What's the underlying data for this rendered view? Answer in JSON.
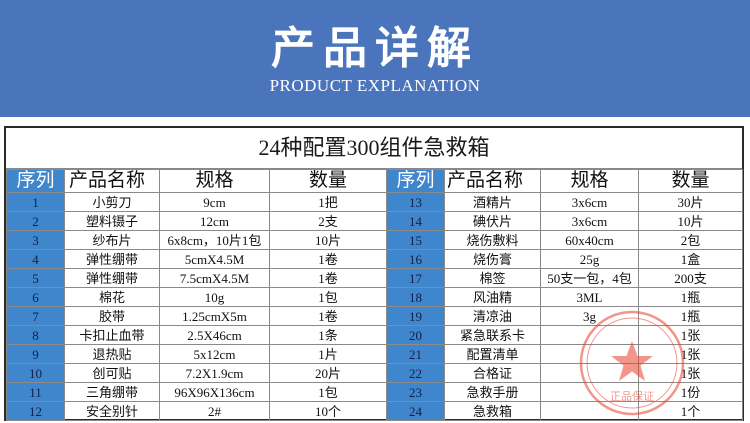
{
  "banner": {
    "title": "产品详解",
    "subtitle": "PRODUCT EXPLANATION"
  },
  "table": {
    "title": "24种配置300组件急救箱",
    "headers": {
      "index": "序列",
      "name": "产品名称",
      "spec": "规格",
      "quantity": "数量"
    },
    "left_rows": [
      {
        "index": "1",
        "name": "小剪刀",
        "spec": "9cm",
        "quantity": "1把"
      },
      {
        "index": "2",
        "name": "塑料镊子",
        "spec": "12cm",
        "quantity": "2支"
      },
      {
        "index": "3",
        "name": "纱布片",
        "spec": "6x8cm，10片1包",
        "quantity": "10片"
      },
      {
        "index": "4",
        "name": "弹性绷带",
        "spec": "5cmX4.5M",
        "quantity": "1卷"
      },
      {
        "index": "5",
        "name": "弹性绷带",
        "spec": "7.5cmX4.5M",
        "quantity": "1卷"
      },
      {
        "index": "6",
        "name": "棉花",
        "spec": "10g",
        "quantity": "1包"
      },
      {
        "index": "7",
        "name": "胶带",
        "spec": "1.25cmX5m",
        "quantity": "1卷"
      },
      {
        "index": "8",
        "name": "卡扣止血带",
        "spec": "2.5X46cm",
        "quantity": "1条"
      },
      {
        "index": "9",
        "name": "退热贴",
        "spec": "5x12cm",
        "quantity": "1片"
      },
      {
        "index": "10",
        "name": "创可贴",
        "spec": "7.2X1.9cm",
        "quantity": "20片"
      },
      {
        "index": "11",
        "name": "三角绷带",
        "spec": "96X96X136cm",
        "quantity": "1包"
      },
      {
        "index": "12",
        "name": "安全别针",
        "spec": "2#",
        "quantity": "10个"
      }
    ],
    "right_rows": [
      {
        "index": "13",
        "name": "酒精片",
        "spec": "3x6cm",
        "quantity": "30片"
      },
      {
        "index": "14",
        "name": "碘伏片",
        "spec": "3x6cm",
        "quantity": "10片"
      },
      {
        "index": "15",
        "name": "烧伤敷料",
        "spec": "60x40cm",
        "quantity": "2包"
      },
      {
        "index": "16",
        "name": "烧伤膏",
        "spec": "25g",
        "quantity": "1盒"
      },
      {
        "index": "17",
        "name": "棉签",
        "spec": "50支一包，4包",
        "quantity": "200支"
      },
      {
        "index": "18",
        "name": "风油精",
        "spec": "3ML",
        "quantity": "1瓶"
      },
      {
        "index": "19",
        "name": "清凉油",
        "spec": "3g",
        "quantity": "1瓶"
      },
      {
        "index": "20",
        "name": "紧急联系卡",
        "spec": "",
        "quantity": "1张"
      },
      {
        "index": "21",
        "name": "配置清单",
        "spec": "",
        "quantity": "1张"
      },
      {
        "index": "22",
        "name": "合格证",
        "spec": "",
        "quantity": "1张"
      },
      {
        "index": "23",
        "name": "急救手册",
        "spec": "",
        "quantity": "1份"
      },
      {
        "index": "24",
        "name": "急救箱",
        "spec": "",
        "quantity": "1个"
      }
    ]
  },
  "seal": {
    "text": "正品保证",
    "color": "#e8422e"
  },
  "colors": {
    "banner": "#4a74bb",
    "index_column": "#3f86cc"
  }
}
